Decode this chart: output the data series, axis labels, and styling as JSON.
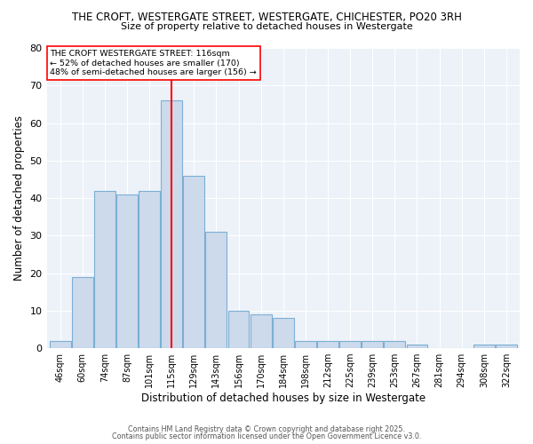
{
  "title_line1": "THE CROFT, WESTERGATE STREET, WESTERGATE, CHICHESTER, PO20 3RH",
  "title_line2": "Size of property relative to detached houses in Westergate",
  "xlabel": "Distribution of detached houses by size in Westergate",
  "ylabel": "Number of detached properties",
  "bar_labels": [
    "46sqm",
    "60sqm",
    "74sqm",
    "87sqm",
    "101sqm",
    "115sqm",
    "129sqm",
    "143sqm",
    "156sqm",
    "170sqm",
    "184sqm",
    "198sqm",
    "212sqm",
    "225sqm",
    "239sqm",
    "253sqm",
    "267sqm",
    "281sqm",
    "294sqm",
    "308sqm",
    "322sqm"
  ],
  "bar_values": [
    2,
    19,
    42,
    41,
    42,
    66,
    46,
    31,
    10,
    9,
    8,
    2,
    2,
    2,
    2,
    2,
    1,
    0,
    0,
    1,
    1
  ],
  "bar_color": "#ccdaec",
  "bar_edge_color": "#7bafd4",
  "annotation_line1": "THE CROFT WESTERGATE STREET: 116sqm",
  "annotation_line2": "← 52% of detached houses are smaller (170)",
  "annotation_line3": "48% of semi-detached houses are larger (156) →",
  "ylim": [
    0,
    80
  ],
  "yticks": [
    0,
    10,
    20,
    30,
    40,
    50,
    60,
    70,
    80
  ],
  "background_color": "#edf2f9",
  "footnote1": "Contains HM Land Registry data © Crown copyright and database right 2025.",
  "footnote2": "Contains public sector information licensed under the Open Government Licence v3.0."
}
